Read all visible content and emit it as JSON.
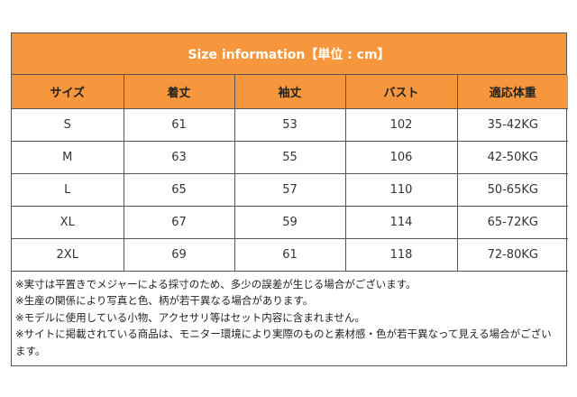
{
  "header": {
    "title": "Size information【単位 : cm】"
  },
  "columns": [
    "サイズ",
    "着丈",
    "袖丈",
    "バスト",
    "適応体重"
  ],
  "rows": [
    [
      "S",
      "61",
      "53",
      "102",
      "35-42KG"
    ],
    [
      "M",
      "63",
      "55",
      "106",
      "42-50KG"
    ],
    [
      "L",
      "65",
      "57",
      "110",
      "50-65KG"
    ],
    [
      "XL",
      "67",
      "59",
      "114",
      "65-72KG"
    ],
    [
      "2XL",
      "69",
      "61",
      "118",
      "72-80KG"
    ]
  ],
  "notes": [
    "※実寸は平置きでメジャーによる採寸のため、多少の誤差が生じる場合がございます。",
    "※生産の関係により写真と色、柄が若干異なる場合があります。",
    "※モデルに使用している小物、アクセサリ等はセット内容に含まれません。",
    "※サイトに掲載されている商品は、モニター環境により実際のものと素材感・色が若干異なって見える場合がございます。"
  ],
  "colors": {
    "header_bg": "#f7973d",
    "border": "#555555"
  }
}
